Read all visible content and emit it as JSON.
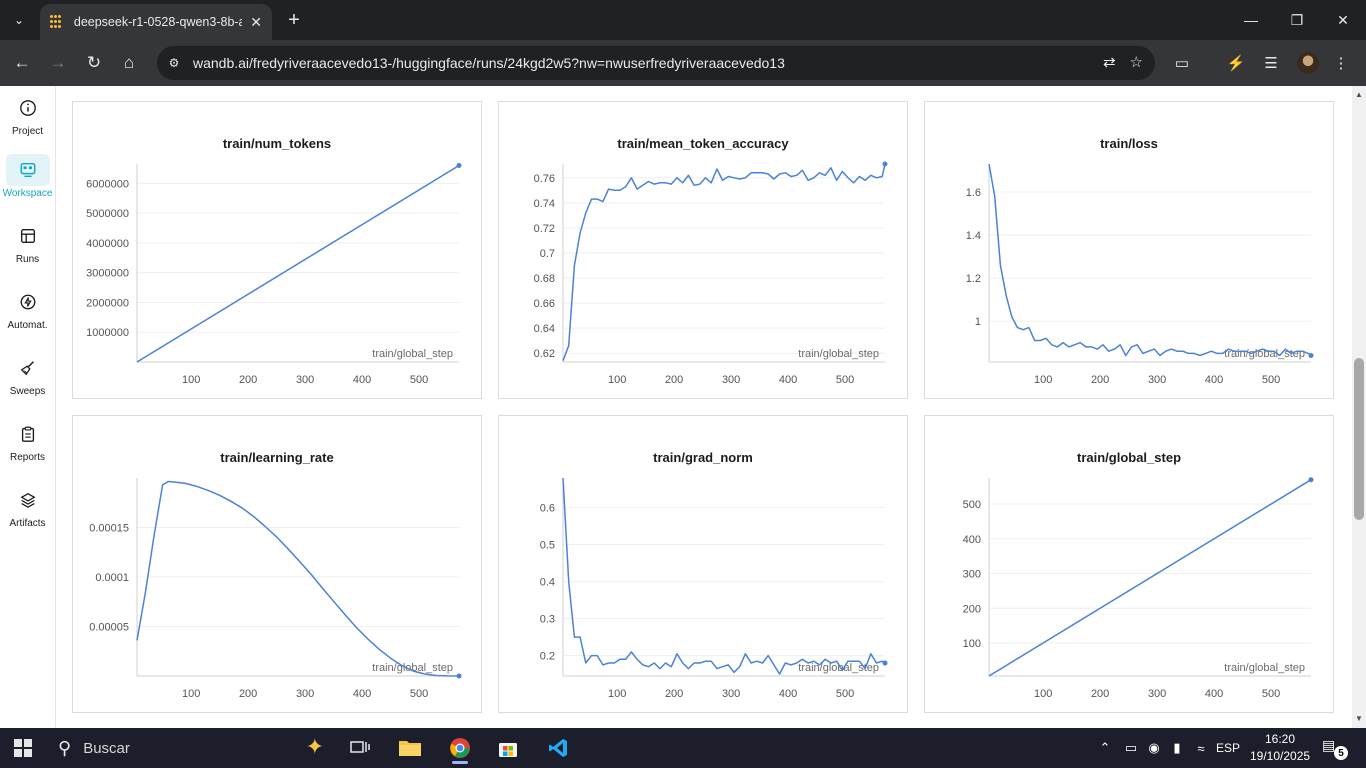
{
  "browser": {
    "tab_title": "deepseek-r1-0528-qwen3-8b-a",
    "url": "wandb.ai/fredyriveraacevedo13-/huggingface/runs/24kgd2w5?nw=nwuserfredyriveraacevedo13"
  },
  "sidebar": {
    "items": [
      {
        "label": "Project",
        "icon": "info-icon"
      },
      {
        "label": "Workspace",
        "icon": "workspace-icon",
        "active": true
      },
      {
        "label": "Runs",
        "icon": "table-icon"
      },
      {
        "label": "Automat.",
        "icon": "automation-icon"
      },
      {
        "label": "Sweeps",
        "icon": "broom-icon"
      },
      {
        "label": "Reports",
        "icon": "clipboard-icon"
      },
      {
        "label": "Artifacts",
        "icon": "layers-icon"
      }
    ]
  },
  "colors": {
    "line": "#4b82d6",
    "active_accent": "#13a9c3"
  },
  "chart_data": [
    {
      "type": "line",
      "title": "train/num_tokens",
      "xlabel": "train/global_step",
      "xlim": [
        5,
        570
      ],
      "ylim": [
        0,
        6650000
      ],
      "xticks": [
        100,
        200,
        300,
        400,
        500
      ],
      "yticks": [
        1000000,
        2000000,
        3000000,
        4000000,
        5000000,
        6000000
      ],
      "ytick_labels": [
        "1000000",
        "2000000",
        "3000000",
        "4000000",
        "5000000",
        "6000000"
      ],
      "x": [
        5,
        570
      ],
      "y": [
        0,
        6600000
      ]
    },
    {
      "type": "line",
      "title": "train/mean_token_accuracy",
      "xlabel": "train/global_step",
      "xlim": [
        5,
        570
      ],
      "ylim": [
        0.613,
        0.771
      ],
      "xticks": [
        100,
        200,
        300,
        400,
        500
      ],
      "yticks": [
        0.62,
        0.64,
        0.66,
        0.68,
        0.7,
        0.72,
        0.74,
        0.76
      ],
      "ytick_labels": [
        "0.62",
        "0.64",
        "0.66",
        "0.68",
        "0.7",
        "0.72",
        "0.74",
        "0.76"
      ],
      "x": [
        5,
        15,
        25,
        35,
        45,
        55,
        65,
        75,
        85,
        95,
        105,
        115,
        125,
        135,
        145,
        155,
        165,
        175,
        185,
        195,
        205,
        215,
        225,
        235,
        245,
        255,
        265,
        275,
        285,
        295,
        305,
        315,
        325,
        335,
        345,
        355,
        365,
        375,
        385,
        395,
        405,
        415,
        425,
        435,
        445,
        455,
        465,
        475,
        485,
        495,
        505,
        515,
        525,
        535,
        545,
        555,
        565,
        570
      ],
      "y": [
        0.614,
        0.626,
        0.69,
        0.716,
        0.732,
        0.743,
        0.743,
        0.741,
        0.751,
        0.75,
        0.75,
        0.753,
        0.76,
        0.751,
        0.754,
        0.757,
        0.755,
        0.756,
        0.756,
        0.755,
        0.76,
        0.756,
        0.762,
        0.754,
        0.755,
        0.76,
        0.756,
        0.767,
        0.758,
        0.761,
        0.76,
        0.759,
        0.76,
        0.764,
        0.764,
        0.764,
        0.763,
        0.759,
        0.763,
        0.764,
        0.761,
        0.762,
        0.766,
        0.758,
        0.76,
        0.764,
        0.762,
        0.768,
        0.758,
        0.765,
        0.76,
        0.756,
        0.761,
        0.758,
        0.762,
        0.76,
        0.761,
        0.771
      ]
    },
    {
      "type": "line",
      "title": "train/loss",
      "xlabel": "train/global_step",
      "xlim": [
        5,
        570
      ],
      "ylim": [
        0.81,
        1.73
      ],
      "xticks": [
        100,
        200,
        300,
        400,
        500
      ],
      "yticks": [
        1.0,
        1.2,
        1.4,
        1.6
      ],
      "ytick_labels": [
        "1",
        "1.2",
        "1.4",
        "1.6"
      ],
      "x": [
        5,
        15,
        25,
        35,
        45,
        55,
        65,
        75,
        85,
        95,
        105,
        115,
        125,
        135,
        145,
        155,
        165,
        175,
        185,
        195,
        205,
        215,
        225,
        235,
        245,
        255,
        265,
        275,
        285,
        295,
        305,
        315,
        325,
        335,
        345,
        355,
        365,
        375,
        385,
        395,
        405,
        415,
        425,
        435,
        445,
        455,
        465,
        475,
        485,
        495,
        505,
        515,
        525,
        535,
        545,
        555,
        565,
        570
      ],
      "y": [
        1.73,
        1.58,
        1.26,
        1.12,
        1.02,
        0.97,
        0.96,
        0.97,
        0.91,
        0.91,
        0.92,
        0.89,
        0.88,
        0.9,
        0.88,
        0.89,
        0.9,
        0.88,
        0.88,
        0.87,
        0.89,
        0.86,
        0.87,
        0.89,
        0.84,
        0.88,
        0.89,
        0.85,
        0.86,
        0.87,
        0.84,
        0.86,
        0.87,
        0.86,
        0.86,
        0.85,
        0.85,
        0.84,
        0.85,
        0.86,
        0.85,
        0.85,
        0.87,
        0.86,
        0.86,
        0.86,
        0.85,
        0.86,
        0.87,
        0.86,
        0.86,
        0.84,
        0.87,
        0.85,
        0.86,
        0.86,
        0.85,
        0.84
      ]
    },
    {
      "type": "line",
      "title": "train/learning_rate",
      "xlabel": "train/global_step",
      "xlim": [
        5,
        570
      ],
      "ylim": [
        0,
        0.0002
      ],
      "xticks": [
        100,
        200,
        300,
        400,
        500
      ],
      "yticks": [
        5e-05,
        0.0001,
        0.00015
      ],
      "ytick_labels": [
        "0.00005",
        "0.0001",
        "0.00015"
      ],
      "x": [
        5,
        20,
        35,
        50,
        60,
        70,
        90,
        110,
        130,
        150,
        170,
        190,
        210,
        230,
        250,
        270,
        290,
        310,
        330,
        350,
        370,
        390,
        410,
        430,
        450,
        470,
        490,
        510,
        530,
        550,
        570
      ],
      "y": [
        3.6e-05,
        8.5e-05,
        0.000142,
        0.000193,
        0.0001965,
        0.000196,
        0.0001945,
        0.0001915,
        0.0001875,
        0.0001825,
        0.0001765,
        0.0001695,
        0.000161,
        0.000151,
        0.0001405,
        0.0001285,
        0.000116,
        0.000103,
        8.9e-05,
        7.55e-05,
        6.2e-05,
        4.9e-05,
        3.75e-05,
        2.7e-05,
        1.8e-05,
        1.05e-05,
        5e-06,
        2e-06,
        5e-07,
        1e-07,
        0.0
      ]
    },
    {
      "type": "line",
      "title": "train/grad_norm",
      "xlabel": "train/global_step",
      "xlim": [
        5,
        570
      ],
      "ylim": [
        0.145,
        0.68
      ],
      "xticks": [
        100,
        200,
        300,
        400,
        500
      ],
      "yticks": [
        0.2,
        0.3,
        0.4,
        0.5,
        0.6
      ],
      "ytick_labels": [
        "0.2",
        "0.3",
        "0.4",
        "0.5",
        "0.6"
      ],
      "x": [
        5,
        15,
        25,
        35,
        45,
        55,
        65,
        75,
        85,
        95,
        105,
        115,
        125,
        135,
        145,
        155,
        165,
        175,
        185,
        195,
        205,
        215,
        225,
        235,
        245,
        255,
        265,
        275,
        285,
        295,
        305,
        315,
        325,
        335,
        345,
        355,
        365,
        375,
        385,
        395,
        405,
        415,
        425,
        435,
        445,
        455,
        465,
        475,
        485,
        495,
        505,
        515,
        525,
        535,
        545,
        555,
        565,
        570
      ],
      "y": [
        0.68,
        0.4,
        0.25,
        0.25,
        0.18,
        0.2,
        0.2,
        0.175,
        0.18,
        0.18,
        0.19,
        0.19,
        0.21,
        0.19,
        0.175,
        0.17,
        0.18,
        0.165,
        0.18,
        0.17,
        0.205,
        0.18,
        0.165,
        0.18,
        0.18,
        0.185,
        0.185,
        0.165,
        0.17,
        0.175,
        0.155,
        0.17,
        0.205,
        0.18,
        0.185,
        0.18,
        0.2,
        0.175,
        0.15,
        0.18,
        0.175,
        0.18,
        0.19,
        0.18,
        0.185,
        0.175,
        0.19,
        0.18,
        0.185,
        0.16,
        0.185,
        0.185,
        0.185,
        0.165,
        0.205,
        0.18,
        0.185,
        0.18
      ]
    },
    {
      "type": "line",
      "title": "train/global_step",
      "xlabel": "train/global_step",
      "xlim": [
        5,
        570
      ],
      "ylim": [
        5,
        575
      ],
      "xticks": [
        100,
        200,
        300,
        400,
        500
      ],
      "yticks": [
        100,
        200,
        300,
        400,
        500
      ],
      "ytick_labels": [
        "100",
        "200",
        "300",
        "400",
        "500"
      ],
      "x": [
        5,
        570
      ],
      "y": [
        5,
        570
      ]
    }
  ],
  "taskbar": {
    "search_placeholder": "Buscar",
    "language": "ESP",
    "time": "16:20",
    "date": "19/10/2025",
    "notification_count": "5"
  }
}
